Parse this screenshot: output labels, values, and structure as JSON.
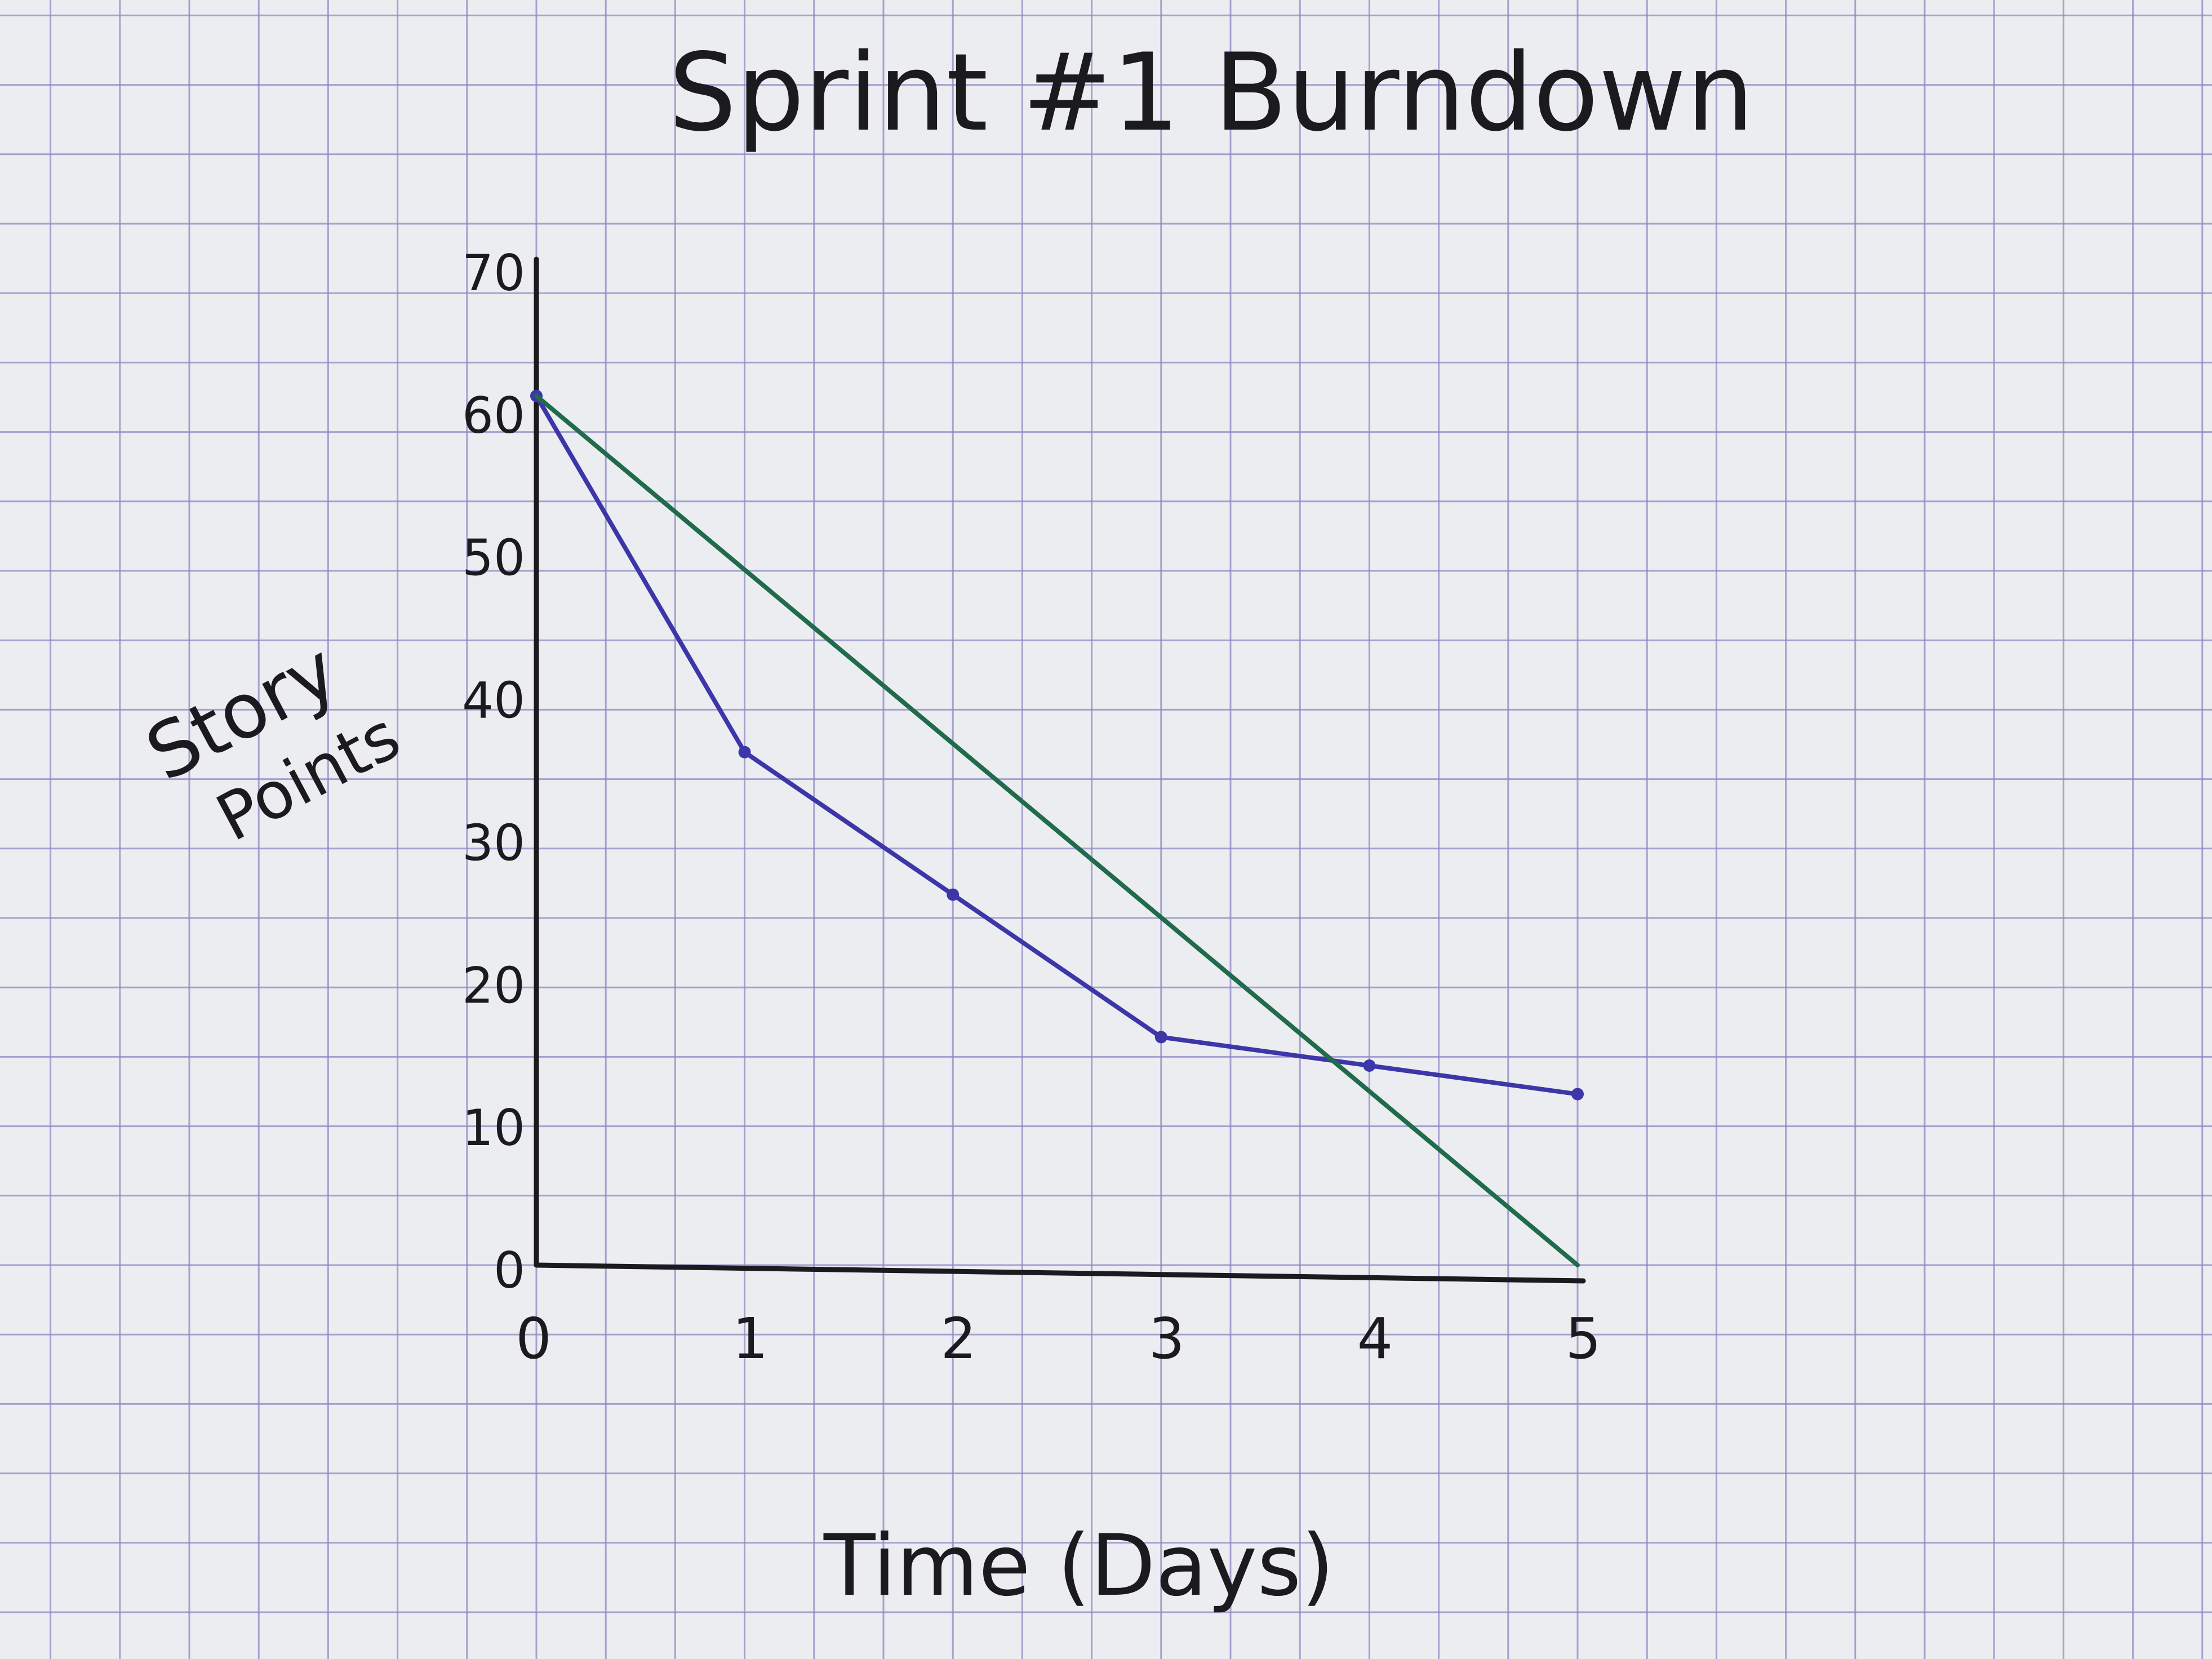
{
  "colors": {
    "paper": "#ecedf0",
    "grid": "#8d87c4",
    "ink": "#1b1b1f",
    "actual": "#3d36a8",
    "ideal": "#1f6b4b"
  },
  "chart_data": {
    "type": "line",
    "title": "Sprint #1 Burndown",
    "xlabel": "Time (Days)",
    "ylabel_lines": [
      "Story",
      "Points"
    ],
    "x": [
      0,
      1,
      2,
      3,
      4,
      5
    ],
    "x_tick_labels": [
      "0",
      "1",
      "2",
      "3",
      "4",
      "5"
    ],
    "y_ticks": [
      0,
      10,
      20,
      30,
      40,
      50,
      60,
      70
    ],
    "y_tick_labels": [
      "0",
      "10",
      "20",
      "30",
      "40",
      "50",
      "60",
      "70"
    ],
    "xlim": [
      0,
      5
    ],
    "ylim": [
      0,
      70
    ],
    "grid": true,
    "legend": "none",
    "series": [
      {
        "color_key": "actual",
        "x": [
          0,
          1,
          2,
          3,
          4,
          5
        ],
        "values": [
          61,
          36,
          26,
          16,
          14,
          12
        ],
        "markers": true
      },
      {
        "color_key": "ideal",
        "x": [
          0,
          5
        ],
        "values": [
          61,
          0
        ],
        "markers": false
      }
    ]
  }
}
